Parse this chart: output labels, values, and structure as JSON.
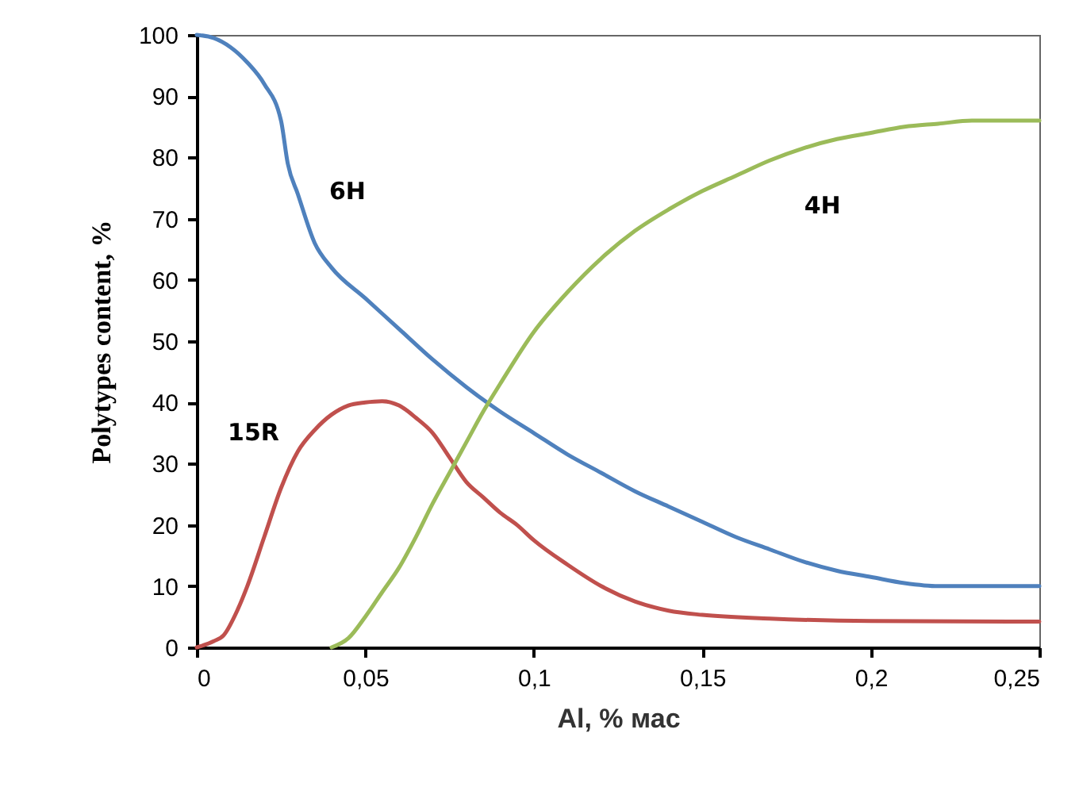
{
  "chart_data": {
    "type": "line",
    "xlabel": "Al, % мас",
    "ylabel": "Polytypes content, %",
    "xlim": [
      0,
      0.25
    ],
    "ylim": [
      0,
      100
    ],
    "xticks": [
      0,
      {
        "value": 0.05,
        "label": "0,05"
      },
      {
        "value": 0.1,
        "label": "0,1"
      },
      {
        "value": 0.15,
        "label": "0,15"
      },
      {
        "value": 0.2,
        "label": "0,2"
      },
      {
        "value": 0.25,
        "label": "0,25"
      }
    ],
    "yticks": [
      0,
      10,
      20,
      30,
      40,
      50,
      60,
      70,
      80,
      90,
      100
    ],
    "marker": "none",
    "line_style": "solid",
    "series": [
      {
        "name": "6H",
        "color": "#4f81bd",
        "x": [
          0,
          0.005,
          0.01,
          0.015,
          0.02,
          0.025,
          0.027,
          0.03,
          0.035,
          0.04,
          0.05,
          0.06,
          0.07,
          0.08,
          0.09,
          0.1,
          0.11,
          0.12,
          0.13,
          0.14,
          0.15,
          0.16,
          0.17,
          0.18,
          0.19,
          0.2,
          0.21,
          0.22,
          0.23,
          0.25
        ],
        "values": [
          100,
          99.5,
          98,
          95.5,
          92,
          86,
          79,
          74,
          66,
          62,
          57,
          52,
          47,
          42.5,
          38.5,
          35,
          31.5,
          28.5,
          25.5,
          23,
          20.5,
          18,
          16,
          14,
          12.5,
          11.5,
          10.5,
          10,
          10,
          10
        ]
      },
      {
        "name": "15R",
        "color": "#c0504d",
        "x": [
          0,
          0.005,
          0.008,
          0.012,
          0.015,
          0.02,
          0.025,
          0.03,
          0.035,
          0.04,
          0.045,
          0.05,
          0.055,
          0.06,
          0.065,
          0.07,
          0.075,
          0.08,
          0.085,
          0.09,
          0.095,
          0.1,
          0.11,
          0.12,
          0.13,
          0.14,
          0.15,
          0.17,
          0.2,
          0.25
        ],
        "values": [
          0,
          1,
          2,
          6,
          10,
          18,
          26,
          32,
          35.5,
          38,
          39.5,
          40,
          40.2,
          39.5,
          37.5,
          35,
          31,
          27,
          24.5,
          22,
          20,
          17.5,
          13.5,
          10,
          7.5,
          6,
          5.3,
          4.7,
          4.3,
          4.2
        ]
      },
      {
        "name": "4H",
        "color": "#9bbb59",
        "x": [
          0.04,
          0.045,
          0.05,
          0.055,
          0.06,
          0.065,
          0.07,
          0.075,
          0.08,
          0.085,
          0.09,
          0.1,
          0.11,
          0.12,
          0.13,
          0.14,
          0.15,
          0.16,
          0.17,
          0.18,
          0.19,
          0.2,
          0.21,
          0.22,
          0.23,
          0.25
        ],
        "values": [
          0,
          1.5,
          5,
          9,
          13,
          18,
          23.5,
          28.5,
          33.5,
          38.5,
          43,
          51.5,
          58,
          63.5,
          68,
          71.5,
          74.5,
          77,
          79.5,
          81.5,
          83,
          84,
          85,
          85.5,
          86,
          86
        ]
      }
    ]
  }
}
